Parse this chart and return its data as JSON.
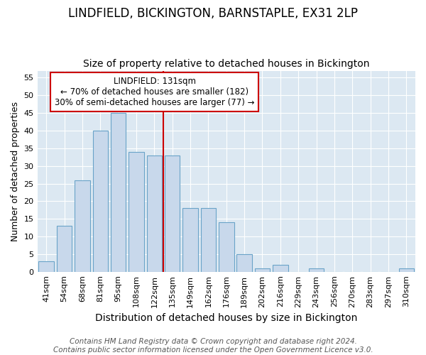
{
  "title1": "LINDFIELD, BICKINGTON, BARNSTAPLE, EX31 2LP",
  "title2": "Size of property relative to detached houses in Bickington",
  "xlabel": "Distribution of detached houses by size in Bickington",
  "ylabel": "Number of detached properties",
  "categories": [
    "41sqm",
    "54sqm",
    "68sqm",
    "81sqm",
    "95sqm",
    "108sqm",
    "122sqm",
    "135sqm",
    "149sqm",
    "162sqm",
    "176sqm",
    "189sqm",
    "202sqm",
    "216sqm",
    "229sqm",
    "243sqm",
    "256sqm",
    "270sqm",
    "283sqm",
    "297sqm",
    "310sqm"
  ],
  "values": [
    3,
    13,
    26,
    40,
    45,
    34,
    33,
    33,
    18,
    18,
    14,
    5,
    1,
    2,
    0,
    1,
    0,
    0,
    0,
    0,
    1
  ],
  "bar_color": "#c8d8eb",
  "bar_edge_color": "#6aa3c8",
  "vline_x": 7.0,
  "vline_color": "#cc0000",
  "annotation_text_line1": "LINDFIELD: 131sqm",
  "annotation_text_line2": "← 70% of detached houses are smaller (182)",
  "annotation_text_line3": "30% of semi-detached houses are larger (77) →",
  "annotation_box_facecolor": "#ffffff",
  "annotation_box_edgecolor": "#cc0000",
  "ylim": [
    0,
    57
  ],
  "yticks": [
    0,
    5,
    10,
    15,
    20,
    25,
    30,
    35,
    40,
    45,
    50,
    55
  ],
  "fig_facecolor": "#ffffff",
  "plot_facecolor": "#dce8f2",
  "grid_color": "#ffffff",
  "title1_fontsize": 12,
  "title2_fontsize": 10,
  "xlabel_fontsize": 10,
  "ylabel_fontsize": 9,
  "tick_fontsize": 8,
  "annotation_fontsize": 8.5,
  "footer_fontsize": 7.5,
  "footer1": "Contains HM Land Registry data © Crown copyright and database right 2024.",
  "footer2": "Contains public sector information licensed under the Open Government Licence v3.0."
}
